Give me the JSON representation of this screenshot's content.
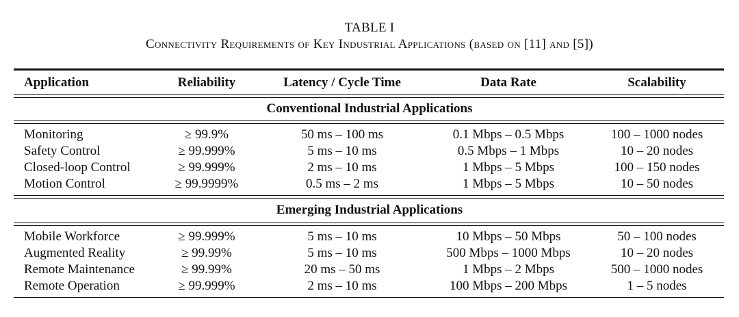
{
  "table": {
    "label": "TABLE I",
    "title": "Connectivity Requirements of Key Industrial Applications (based on [11] and [5])",
    "headers": [
      "Application",
      "Reliability",
      "Latency / Cycle Time",
      "Data Rate",
      "Scalability"
    ],
    "sections": [
      {
        "title": "Conventional Industrial Applications",
        "rows": [
          [
            "Monitoring",
            "≥ 99.9%",
            "50 ms – 100 ms",
            "0.1 Mbps – 0.5 Mbps",
            "100 – 1000 nodes"
          ],
          [
            "Safety Control",
            "≥ 99.999%",
            "5 ms – 10 ms",
            "0.5 Mbps – 1 Mbps",
            "10 – 20 nodes"
          ],
          [
            "Closed-loop Control",
            "≥ 99.999%",
            "2 ms – 10 ms",
            "1 Mbps – 5 Mbps",
            "100 – 150 nodes"
          ],
          [
            "Motion Control",
            "≥ 99.9999%",
            "0.5 ms – 2 ms",
            "1 Mbps – 5 Mbps",
            "10 – 50 nodes"
          ]
        ]
      },
      {
        "title": "Emerging Industrial Applications",
        "rows": [
          [
            "Mobile Workforce",
            "≥ 99.999%",
            "5 ms – 10 ms",
            "10 Mbps – 50 Mbps",
            "50 – 100 nodes"
          ],
          [
            "Augmented Reality",
            "≥ 99.99%",
            "5 ms – 10 ms",
            "500 Mbps – 1000 Mbps",
            "10 – 20 nodes"
          ],
          [
            "Remote Maintenance",
            "≥ 99.99%",
            "20 ms – 50 ms",
            "1 Mbps – 2 Mbps",
            "500 – 1000 nodes"
          ],
          [
            "Remote Operation",
            "≥ 99.999%",
            "2 ms – 10 ms",
            "100 Mbps – 200 Mbps",
            "1 – 5 nodes"
          ]
        ]
      }
    ]
  }
}
